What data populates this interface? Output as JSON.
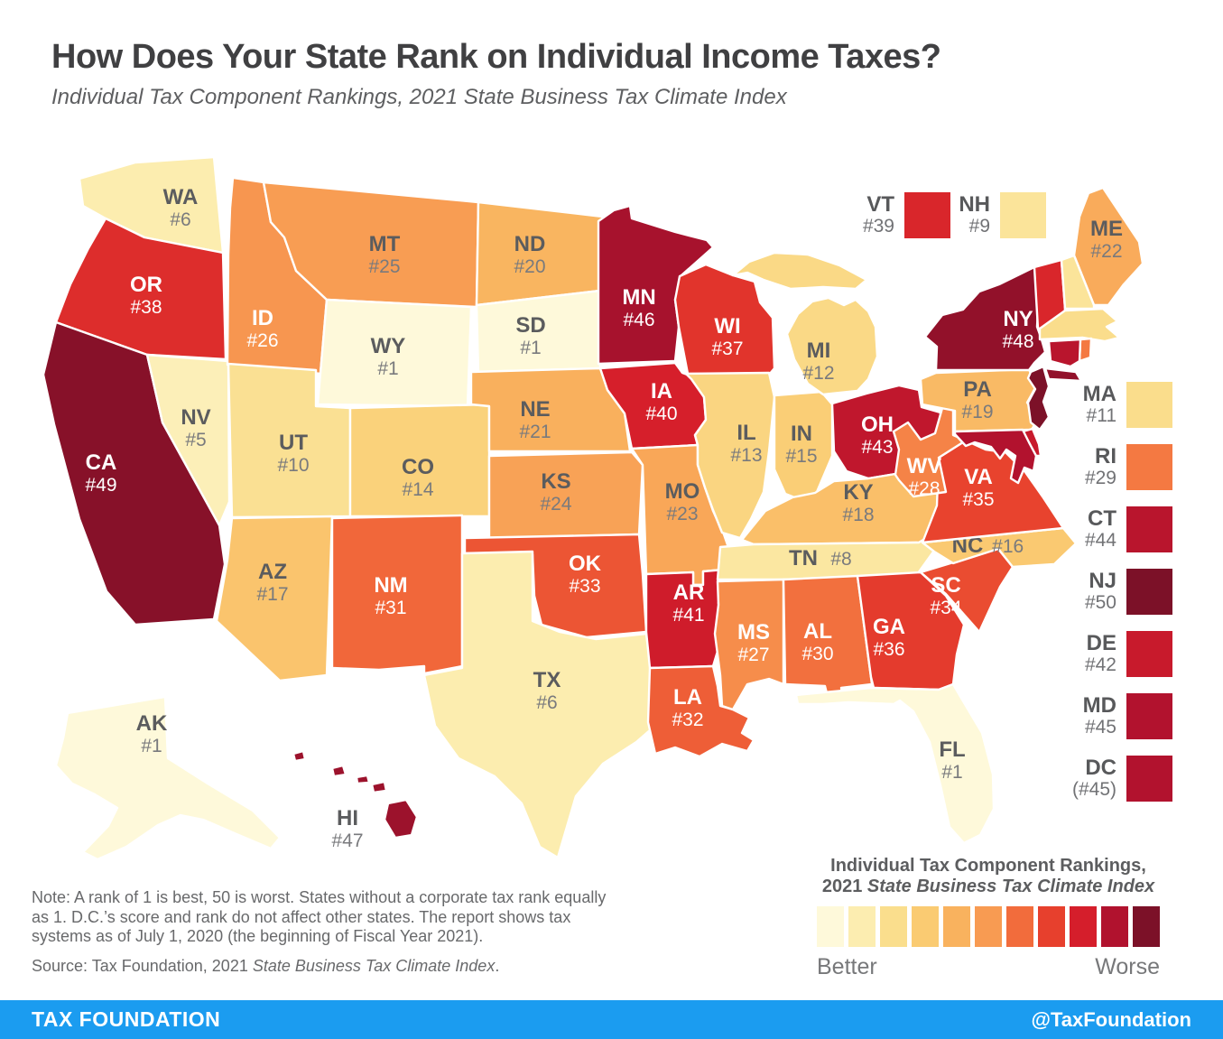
{
  "header": {
    "title": "How Does Your State Rank on Individual Income Taxes?",
    "subtitle": "Individual Tax Component Rankings, 2021 State Business Tax Climate Index"
  },
  "map": {
    "states": [
      {
        "abbr": "WA",
        "rank": 6,
        "rank_label": "#6",
        "labeled": true
      },
      {
        "abbr": "OR",
        "rank": 38,
        "rank_label": "#38",
        "labeled": true
      },
      {
        "abbr": "CA",
        "rank": 49,
        "rank_label": "#49",
        "labeled": true
      },
      {
        "abbr": "NV",
        "rank": 5,
        "rank_label": "#5",
        "labeled": true
      },
      {
        "abbr": "ID",
        "rank": 26,
        "rank_label": "#26",
        "labeled": true
      },
      {
        "abbr": "MT",
        "rank": 25,
        "rank_label": "#25",
        "labeled": true
      },
      {
        "abbr": "WY",
        "rank": 1,
        "rank_label": "#1",
        "labeled": true
      },
      {
        "abbr": "UT",
        "rank": 10,
        "rank_label": "#10",
        "labeled": true
      },
      {
        "abbr": "CO",
        "rank": 14,
        "rank_label": "#14",
        "labeled": true
      },
      {
        "abbr": "AZ",
        "rank": 17,
        "rank_label": "#17",
        "labeled": true
      },
      {
        "abbr": "NM",
        "rank": 31,
        "rank_label": "#31",
        "labeled": true
      },
      {
        "abbr": "ND",
        "rank": 20,
        "rank_label": "#20",
        "labeled": true
      },
      {
        "abbr": "SD",
        "rank": 1,
        "rank_label": "#1",
        "labeled": true
      },
      {
        "abbr": "NE",
        "rank": 21,
        "rank_label": "#21",
        "labeled": true
      },
      {
        "abbr": "KS",
        "rank": 24,
        "rank_label": "#24",
        "labeled": true
      },
      {
        "abbr": "OK",
        "rank": 33,
        "rank_label": "#33",
        "labeled": true
      },
      {
        "abbr": "TX",
        "rank": 6,
        "rank_label": "#6",
        "labeled": true
      },
      {
        "abbr": "MN",
        "rank": 46,
        "rank_label": "#46",
        "labeled": true
      },
      {
        "abbr": "IA",
        "rank": 40,
        "rank_label": "#40",
        "labeled": true
      },
      {
        "abbr": "MO",
        "rank": 23,
        "rank_label": "#23",
        "labeled": true
      },
      {
        "abbr": "AR",
        "rank": 41,
        "rank_label": "#41",
        "labeled": true
      },
      {
        "abbr": "LA",
        "rank": 32,
        "rank_label": "#32",
        "labeled": true
      },
      {
        "abbr": "WI",
        "rank": 37,
        "rank_label": "#37",
        "labeled": true
      },
      {
        "abbr": "IL",
        "rank": 13,
        "rank_label": "#13",
        "labeled": true
      },
      {
        "abbr": "IN",
        "rank": 15,
        "rank_label": "#15",
        "labeled": true
      },
      {
        "abbr": "MI",
        "rank": 12,
        "rank_label": "#12",
        "labeled": true
      },
      {
        "abbr": "OH",
        "rank": 43,
        "rank_label": "#43",
        "labeled": true
      },
      {
        "abbr": "KY",
        "rank": 18,
        "rank_label": "#18",
        "labeled": true
      },
      {
        "abbr": "TN",
        "rank": 8,
        "rank_label": "#8",
        "labeled": true,
        "inline": true
      },
      {
        "abbr": "MS",
        "rank": 27,
        "rank_label": "#27",
        "labeled": true
      },
      {
        "abbr": "AL",
        "rank": 30,
        "rank_label": "#30",
        "labeled": true
      },
      {
        "abbr": "GA",
        "rank": 36,
        "rank_label": "#36",
        "labeled": true
      },
      {
        "abbr": "FL",
        "rank": 1,
        "rank_label": "#1",
        "labeled": true
      },
      {
        "abbr": "SC",
        "rank": 34,
        "rank_label": "#34",
        "labeled": true
      },
      {
        "abbr": "NC",
        "rank": 16,
        "rank_label": "#16",
        "labeled": true,
        "inline": true
      },
      {
        "abbr": "VA",
        "rank": 35,
        "rank_label": "#35",
        "labeled": true
      },
      {
        "abbr": "WV",
        "rank": 28,
        "rank_label": "#28",
        "labeled": true
      },
      {
        "abbr": "PA",
        "rank": 19,
        "rank_label": "#19",
        "labeled": true
      },
      {
        "abbr": "NY",
        "rank": 48,
        "rank_label": "#48",
        "labeled": true
      },
      {
        "abbr": "ME",
        "rank": 22,
        "rank_label": "#22",
        "labeled": true
      },
      {
        "abbr": "AK",
        "rank": 1,
        "rank_label": "#1",
        "labeled": true
      },
      {
        "abbr": "HI",
        "rank": 47,
        "rank_label": "#47",
        "labeled": true,
        "label_outside": true
      },
      {
        "abbr": "VT",
        "rank": 39,
        "rank_label": "#39",
        "labeled": false
      },
      {
        "abbr": "NH",
        "rank": 9,
        "rank_label": "#9",
        "labeled": false
      },
      {
        "abbr": "MA",
        "rank": 11,
        "rank_label": "#11",
        "labeled": false
      },
      {
        "abbr": "RI",
        "rank": 29,
        "rank_label": "#29",
        "labeled": false
      },
      {
        "abbr": "CT",
        "rank": 44,
        "rank_label": "#44",
        "labeled": false
      },
      {
        "abbr": "NJ",
        "rank": 50,
        "rank_label": "#50",
        "labeled": false
      },
      {
        "abbr": "DE",
        "rank": 42,
        "rank_label": "#42",
        "labeled": false
      },
      {
        "abbr": "MD",
        "rank": 45,
        "rank_label": "#45",
        "labeled": false
      },
      {
        "abbr": "DC",
        "rank": 45,
        "rank_label": "(#45)",
        "labeled": false
      }
    ]
  },
  "side_legend": {
    "top": [
      "VT",
      "NH"
    ],
    "right": [
      "MA",
      "RI",
      "CT",
      "NJ",
      "DE",
      "MD",
      "DC"
    ]
  },
  "legend": {
    "title_line1": "Individual Tax Component Rankings,",
    "title_line2_prefix": "2021 ",
    "title_line2_italic": "State Business Tax Climate Index",
    "better": "Better",
    "worse": "Worse",
    "ramp": [
      "#FEF9DA",
      "#FCEDB0",
      "#FADE8D",
      "#FACB72",
      "#F9B25E",
      "#F89B52",
      "#F26C3C",
      "#E7402D",
      "#D51E2B",
      "#B1122E",
      "#7C1128"
    ]
  },
  "annotations": {
    "note": "Note: A rank of 1 is best, 50 is worst. States without a corporate tax rank equally as 1. D.C.’s score and rank do not affect other states. The report shows tax systems as of July 1, 2020 (the beginning of Fiscal Year 2021).",
    "source_prefix": "Source: Tax Foundation, 2021 ",
    "source_italic": "State Business Tax Climate Index",
    "source_suffix": "."
  },
  "footer": {
    "brand": "TAX FOUNDATION",
    "handle": "@TaxFoundation"
  },
  "colors": {
    "footer_blue": "#1B9CF0",
    "title_text": "#404042",
    "label_dark": "#5B5C5E",
    "label_muted": "#77787A",
    "map_border": "#FFFFFF"
  }
}
